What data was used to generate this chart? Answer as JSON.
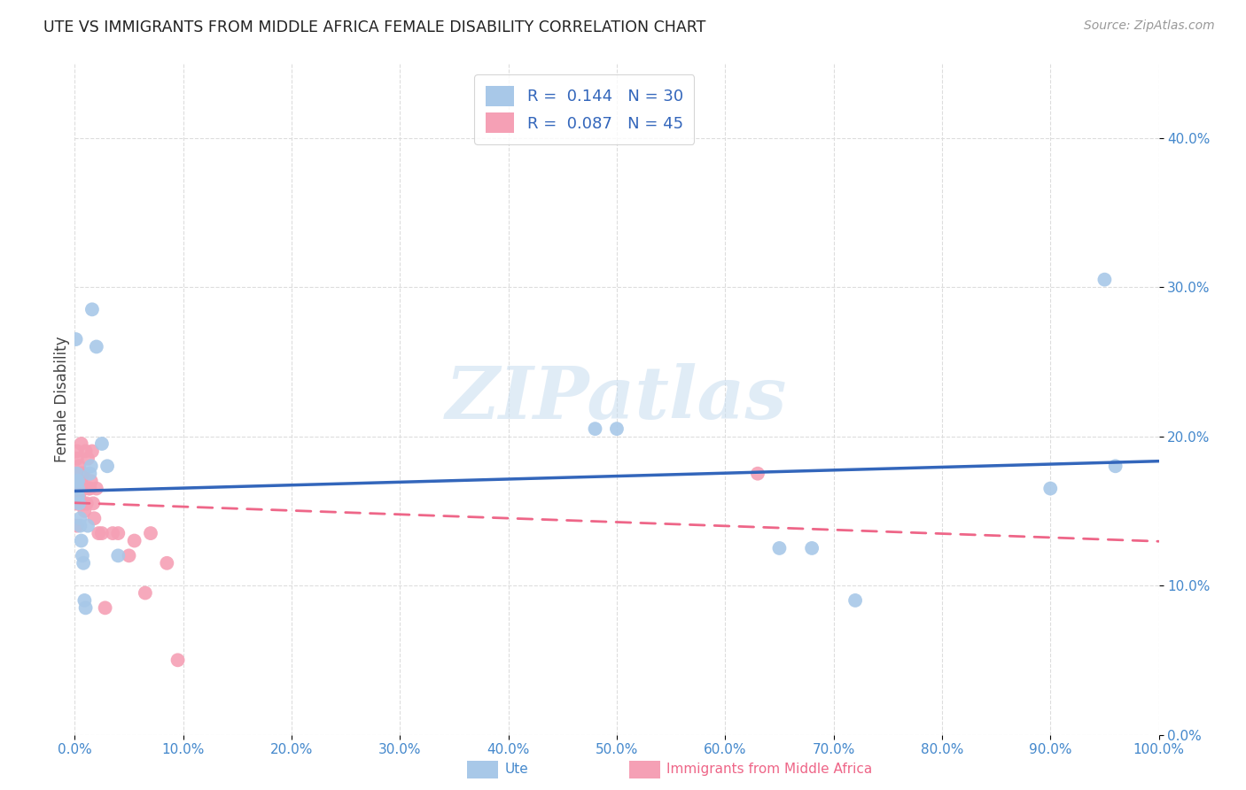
{
  "title": "UTE VS IMMIGRANTS FROM MIDDLE AFRICA FEMALE DISABILITY CORRELATION CHART",
  "source": "Source: ZipAtlas.com",
  "ylabel": "Female Disability",
  "xlim": [
    0.0,
    1.0
  ],
  "ylim": [
    0.0,
    0.45
  ],
  "xtick_vals": [
    0.0,
    0.1,
    0.2,
    0.3,
    0.4,
    0.5,
    0.6,
    0.7,
    0.8,
    0.9,
    1.0
  ],
  "ytick_vals": [
    0.0,
    0.1,
    0.2,
    0.3,
    0.4
  ],
  "ute_x": [
    0.001,
    0.002,
    0.002,
    0.003,
    0.003,
    0.003,
    0.004,
    0.005,
    0.005,
    0.006,
    0.007,
    0.008,
    0.009,
    0.01,
    0.012,
    0.014,
    0.015,
    0.016,
    0.02,
    0.025,
    0.03,
    0.04,
    0.48,
    0.5,
    0.65,
    0.68,
    0.72,
    0.9,
    0.95,
    0.96
  ],
  "ute_y": [
    0.265,
    0.175,
    0.17,
    0.16,
    0.165,
    0.17,
    0.155,
    0.14,
    0.145,
    0.13,
    0.12,
    0.115,
    0.09,
    0.085,
    0.14,
    0.175,
    0.18,
    0.285,
    0.26,
    0.195,
    0.18,
    0.12,
    0.205,
    0.205,
    0.125,
    0.125,
    0.09,
    0.165,
    0.305,
    0.18
  ],
  "immig_x": [
    0.001,
    0.001,
    0.001,
    0.002,
    0.002,
    0.002,
    0.002,
    0.003,
    0.003,
    0.003,
    0.004,
    0.004,
    0.004,
    0.005,
    0.005,
    0.006,
    0.006,
    0.007,
    0.007,
    0.008,
    0.008,
    0.009,
    0.009,
    0.01,
    0.011,
    0.012,
    0.013,
    0.014,
    0.015,
    0.016,
    0.017,
    0.018,
    0.02,
    0.022,
    0.025,
    0.028,
    0.035,
    0.04,
    0.05,
    0.055,
    0.065,
    0.07,
    0.085,
    0.095,
    0.63
  ],
  "immig_y": [
    0.17,
    0.165,
    0.155,
    0.19,
    0.185,
    0.155,
    0.14,
    0.175,
    0.16,
    0.155,
    0.18,
    0.165,
    0.16,
    0.175,
    0.155,
    0.195,
    0.17,
    0.175,
    0.155,
    0.175,
    0.155,
    0.165,
    0.15,
    0.19,
    0.155,
    0.185,
    0.165,
    0.165,
    0.17,
    0.19,
    0.155,
    0.145,
    0.165,
    0.135,
    0.135,
    0.085,
    0.135,
    0.135,
    0.12,
    0.13,
    0.095,
    0.135,
    0.115,
    0.05,
    0.175
  ],
  "ute_color": "#a8c8e8",
  "immig_color": "#f5a0b5",
  "ute_line_color": "#3366bb",
  "immig_line_color": "#ee6688",
  "ute_R": 0.144,
  "ute_N": 30,
  "immig_R": 0.087,
  "immig_N": 45,
  "marker_size": 130,
  "watermark": "ZIPatlas",
  "background_color": "#ffffff",
  "grid_color": "#dddddd",
  "legend_label_ute": "R =  0.144   N = 30",
  "legend_label_immig": "R =  0.087   N = 45",
  "bottom_label_ute": "Ute",
  "bottom_label_immig": "Immigrants from Middle Africa"
}
